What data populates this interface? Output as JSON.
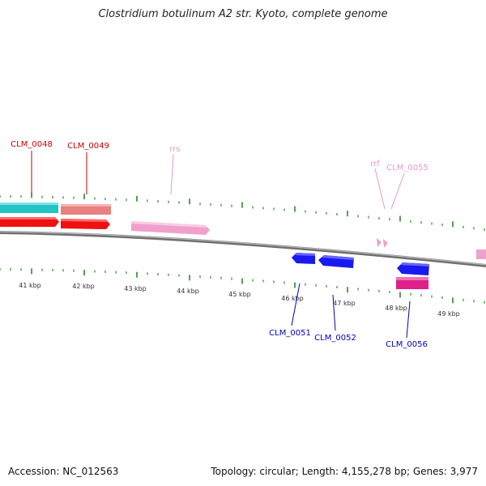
{
  "title": "Clostridium botulinum A2 str. Kyoto, complete genome",
  "footer": {
    "accession": "Accession: NC_012563",
    "summary": "Topology: circular; Length: 4,155,278 bp; Genes: 3,977"
  },
  "colors": {
    "backbone": "#8a8a8a",
    "tick": "#2a8a2a",
    "label_red": "#cc0000",
    "label_pink": "#e89ac8",
    "label_blue": "#0000bb"
  },
  "kbp_labels": [
    "41 kbp",
    "42 kbp",
    "43 kbp",
    "44 kbp",
    "45 kbp",
    "46 kbp",
    "47 kbp",
    "48 kbp",
    "49 kbp"
  ],
  "features": [
    {
      "name": "CLM_0048",
      "color": "red"
    },
    {
      "name": "CLM_0049",
      "color": "red"
    },
    {
      "name": "rrs",
      "color": "pink"
    },
    {
      "name": "rrf",
      "color": "pink"
    },
    {
      "name": "CLM_0055",
      "color": "pink"
    },
    {
      "name": "CLM_0051",
      "color": "blue"
    },
    {
      "name": "CLM_0052",
      "color": "blue"
    },
    {
      "name": "CLM_0056",
      "color": "blue"
    }
  ]
}
